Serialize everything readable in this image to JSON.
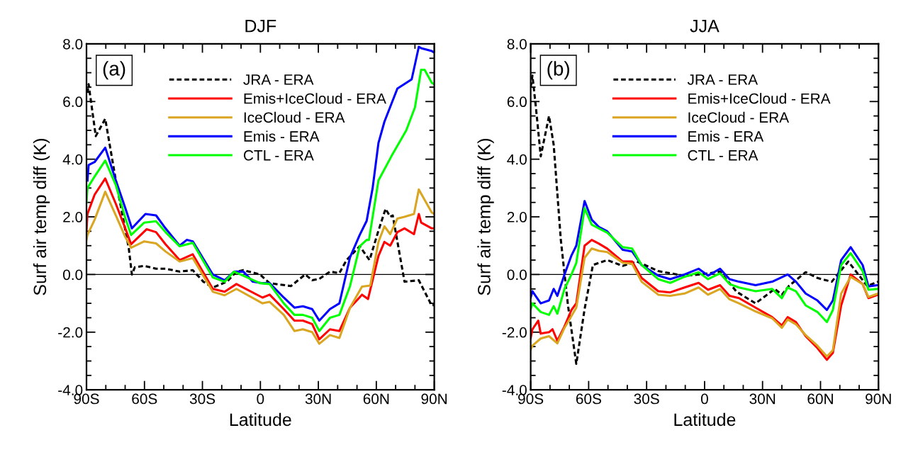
{
  "chart_data": [
    {
      "type": "line",
      "title": "DJF",
      "xlabel": "Latitude",
      "ylabel": "Surf air temp diff (K)",
      "annotations": [
        "(a)"
      ],
      "legend": "top",
      "grid": false,
      "xlim": [
        -90,
        90
      ],
      "xticks": [
        {
          "value": -90,
          "label": "90S"
        },
        {
          "value": -60,
          "label": "60S"
        },
        {
          "value": -30,
          "label": "30S"
        },
        0,
        {
          "value": 30,
          "label": "30N"
        },
        {
          "value": 60,
          "label": "60N"
        },
        {
          "value": 90,
          "label": "90N"
        }
      ],
      "ylim": [
        -4,
        8
      ],
      "yticks": [
        {
          "value": -4,
          "label": "-4.0"
        },
        {
          "value": -2,
          "label": "-2.0"
        },
        {
          "value": 0,
          "label": "0.0"
        },
        {
          "value": 2,
          "label": "2.0"
        },
        {
          "value": 4,
          "label": "4.0"
        },
        {
          "value": 6,
          "label": "6.0"
        },
        {
          "value": 8,
          "label": "8.0"
        }
      ],
      "ref_lines": [
        {
          "axis": "y",
          "value": 0,
          "color": "#000000"
        }
      ],
      "series": [
        {
          "name": "JRA - ERA",
          "color": "#000000",
          "line_style": "dashed",
          "x": [
            -89.5,
            -88.9,
            -85.2,
            -80.3,
            -74.8,
            -71.2,
            -68.1,
            -66.5,
            -65,
            -60,
            -54,
            -49,
            -41.8,
            -35,
            -29.5,
            -24.6,
            -17.3,
            -12.4,
            -8.8,
            -0.2,
            4.8,
            15.8,
            23.2,
            26.8,
            30.5,
            36,
            40.9,
            44.6,
            51.4,
            56.5,
            61,
            64.8,
            67.2,
            68.5,
            74.6,
            82,
            88.7,
            90
          ],
          "values": [
            6.3,
            6.6,
            4.8,
            5.4,
            3.26,
            2.0,
            0.9,
            0.0,
            0.25,
            0.3,
            0.2,
            0.2,
            0.1,
            0.15,
            -0.25,
            -0.45,
            -0.25,
            0.1,
            0.15,
            0.0,
            -0.3,
            -0.4,
            0.0,
            -0.2,
            -0.15,
            0.1,
            0.05,
            0.5,
            0.98,
            0.5,
            1.5,
            2.28,
            2.0,
            2.05,
            -0.25,
            -0.2,
            -1.08,
            -1.05
          ]
        },
        {
          "name": "Emis+IceCloud - ERA",
          "color": "#ff0000",
          "x": [
            -90,
            -89.5,
            -85.8,
            -80.3,
            -74.8,
            -69.9,
            -66.9,
            -58.9,
            -54,
            -49.1,
            -41.8,
            -35,
            -24.6,
            -18.5,
            -12.4,
            1.1,
            4.8,
            12.1,
            17.6,
            22,
            26.8,
            30.5,
            36,
            40.9,
            46.4,
            52.6,
            55.7,
            61.1,
            64.2,
            67.2,
            70.9,
            74.6,
            79.5,
            82,
            83.2,
            88.7,
            90
          ],
          "values": [
            1.5,
            2.1,
            2.77,
            3.33,
            2.45,
            1.6,
            1.05,
            1.57,
            1.47,
            1.05,
            0.5,
            0.7,
            -0.5,
            -0.6,
            -0.33,
            -0.8,
            -0.7,
            -1.2,
            -1.6,
            -1.6,
            -1.72,
            -2.25,
            -1.9,
            -1.96,
            -1.15,
            -0.7,
            -0.85,
            0.64,
            1.13,
            1.0,
            1.47,
            1.6,
            1.4,
            2.1,
            1.8,
            1.6,
            1.6
          ]
        },
        {
          "name": "IceCloud - ERA",
          "color": "#daa520",
          "x": [
            -90,
            -89.5,
            -85.8,
            -80.3,
            -74.8,
            -69.9,
            -66.9,
            -60.1,
            -54,
            -49.1,
            -41.8,
            -35,
            -24.6,
            -18.5,
            -12.4,
            1.1,
            4.8,
            12.1,
            17.6,
            22,
            26.8,
            30.5,
            36,
            40.9,
            46.4,
            52.6,
            56.9,
            61.1,
            64.2,
            67.2,
            70.9,
            74.6,
            79.5,
            82,
            88.7,
            90
          ],
          "values": [
            1.2,
            1.37,
            1.9,
            2.87,
            2.05,
            1.3,
            0.93,
            1.15,
            1.08,
            0.8,
            0.45,
            0.57,
            -0.6,
            -0.72,
            -0.5,
            -1.0,
            -0.95,
            -1.4,
            -1.96,
            -1.9,
            -2.0,
            -2.4,
            -2.1,
            -2.2,
            -1.15,
            -0.42,
            -0.38,
            1.13,
            1.67,
            1.4,
            1.94,
            2.0,
            2.1,
            2.95,
            2.15,
            2.1
          ]
        },
        {
          "name": "Emis - ERA",
          "color": "#0000ff",
          "x": [
            -89.5,
            -88.9,
            -85.8,
            -80.3,
            -74.8,
            -69.9,
            -66.5,
            -59.5,
            -54,
            -49.1,
            -41.8,
            -38.1,
            -35,
            -24.6,
            -18.5,
            -13.6,
            -8.8,
            -3.9,
            1.1,
            4.8,
            12.1,
            17.6,
            22,
            26.8,
            30.5,
            36,
            40.9,
            46.4,
            51.4,
            55,
            58.1,
            61.1,
            64.2,
            70.9,
            78.3,
            82,
            83.2,
            88.7,
            90
          ],
          "values": [
            3.26,
            3.8,
            3.9,
            4.4,
            3.26,
            2.3,
            1.6,
            2.1,
            2.05,
            1.6,
            1.0,
            1.2,
            1.15,
            0.0,
            -0.2,
            0.1,
            0.1,
            -0.25,
            -0.3,
            -0.3,
            -0.8,
            -1.15,
            -1.1,
            -1.2,
            -1.6,
            -1.2,
            -1.0,
            0.6,
            1.37,
            1.86,
            3.0,
            4.56,
            5.3,
            6.45,
            6.77,
            7.9,
            7.85,
            7.75,
            7.7
          ]
        },
        {
          "name": "CTL - ERA",
          "color": "#00ff00",
          "x": [
            -90,
            -89.5,
            -85.8,
            -80.3,
            -74.8,
            -69.9,
            -66.9,
            -60.1,
            -54,
            -49.1,
            -41.8,
            -35,
            -24.6,
            -18.5,
            -13.6,
            -0.2,
            4.8,
            12.1,
            17.6,
            22,
            26.8,
            30.5,
            36,
            40.9,
            46.4,
            51.4,
            55,
            56.2,
            61.1,
            67.8,
            75.5,
            80,
            83.2,
            85,
            88.7,
            90
          ],
          "values": [
            2.5,
            3.0,
            3.4,
            3.95,
            3.1,
            1.96,
            1.37,
            1.8,
            1.85,
            1.47,
            0.98,
            1.1,
            -0.1,
            -0.25,
            0.1,
            -0.3,
            -0.33,
            -1.0,
            -1.4,
            -1.4,
            -1.5,
            -1.96,
            -1.5,
            -1.4,
            -0.4,
            0.98,
            1.2,
            1.2,
            3.26,
            4.1,
            5.0,
            5.8,
            7.1,
            7.1,
            6.65,
            6.6
          ]
        }
      ]
    },
    {
      "type": "line",
      "title": "JJA",
      "xlabel": "Latitude",
      "ylabel": "Surf air temp diff (K)",
      "annotations": [
        "(b)"
      ],
      "legend": "top",
      "grid": false,
      "xlim": [
        -90,
        90
      ],
      "xticks": [
        {
          "value": -90,
          "label": "90S"
        },
        {
          "value": -60,
          "label": "60S"
        },
        {
          "value": -30,
          "label": "30S"
        },
        0,
        {
          "value": 30,
          "label": "30N"
        },
        {
          "value": 60,
          "label": "60N"
        },
        {
          "value": 90,
          "label": "90N"
        }
      ],
      "ylim": [
        -4,
        8
      ],
      "yticks": [
        {
          "value": -4,
          "label": "-4.0"
        },
        {
          "value": -2,
          "label": "-2.0"
        },
        {
          "value": 0,
          "label": "0.0"
        },
        {
          "value": 2,
          "label": "2.0"
        },
        {
          "value": 4,
          "label": "4.0"
        },
        {
          "value": 6,
          "label": "6.0"
        },
        {
          "value": 8,
          "label": "8.0"
        }
      ],
      "ref_lines": [
        {
          "axis": "y",
          "value": 0,
          "color": "#000000"
        }
      ],
      "series": [
        {
          "name": "JRA - ERA",
          "color": "#000000",
          "line_style": "dashed",
          "x": [
            -90,
            -89.1,
            -87.3,
            -84.8,
            -80.5,
            -78.1,
            -74.4,
            -70.7,
            -66.4,
            -62.1,
            -57.8,
            -50.4,
            -42.4,
            -35,
            -24,
            -10.4,
            -3.1,
            -1.8,
            8,
            16.6,
            26.4,
            36.3,
            40,
            43.6,
            52.3,
            58.4,
            65.8,
            74.4,
            84.2,
            89.8
          ],
          "values": [
            6.5,
            6.9,
            5.8,
            4.1,
            5.5,
            4.5,
            1.2,
            -1.07,
            -3.1,
            -1.2,
            0.33,
            0.5,
            0.3,
            0.45,
            0.12,
            -0.05,
            0.0,
            0.0,
            0.1,
            -0.6,
            -1.0,
            -0.5,
            -0.7,
            -0.4,
            0.08,
            -0.12,
            -0.25,
            0.45,
            -0.4,
            -0.25
          ]
        },
        {
          "name": "Emis+IceCloud - ERA",
          "color": "#ff0000",
          "x": [
            -90,
            -89.1,
            -86.1,
            -84.8,
            -80.5,
            -78.7,
            -76.2,
            -72.5,
            -68.9,
            -66.4,
            -62.1,
            -58.4,
            -54.7,
            -50.4,
            -42.4,
            -37.5,
            -32.6,
            -24,
            -17.8,
            -10.4,
            -3.1,
            1.8,
            8,
            12.9,
            17.8,
            26.4,
            35,
            40,
            43,
            47.3,
            52.3,
            58.4,
            63.3,
            66.4,
            70.7,
            75.6,
            81.8,
            84.8,
            89.8
          ],
          "values": [
            -2.2,
            -1.9,
            -1.6,
            -2.05,
            -2.0,
            -1.9,
            -2.3,
            -1.8,
            -1.23,
            -1.0,
            1.0,
            1.2,
            1.07,
            0.9,
            0.45,
            0.45,
            -0.12,
            -0.58,
            -0.62,
            -0.45,
            -0.29,
            -0.53,
            -0.37,
            -0.74,
            -0.82,
            -1.15,
            -1.48,
            -1.77,
            -1.48,
            -1.65,
            -2.14,
            -2.55,
            -2.96,
            -2.72,
            -1.07,
            0.0,
            -0.33,
            -0.82,
            -0.7
          ]
        },
        {
          "name": "IceCloud - ERA",
          "color": "#daa520",
          "x": [
            -90,
            -89.1,
            -84.8,
            -80.5,
            -76.2,
            -72.5,
            -66.4,
            -62.1,
            -58.4,
            -54.7,
            -50.4,
            -42.4,
            -37.5,
            -32.6,
            -24,
            -17.8,
            -10.4,
            -3.1,
            1.8,
            8,
            12.9,
            17.8,
            26.4,
            35,
            40,
            43,
            47.3,
            52.3,
            58.4,
            63.3,
            66.4,
            70.7,
            75.6,
            81.8,
            84.8,
            89.8
          ],
          "values": [
            -2.6,
            -2.47,
            -2.22,
            -2.14,
            -2.39,
            -1.85,
            -1.15,
            0.58,
            0.9,
            0.82,
            0.78,
            0.41,
            0.37,
            -0.25,
            -0.7,
            -0.74,
            -0.66,
            -0.45,
            -0.7,
            -0.5,
            -0.86,
            -1.0,
            -1.28,
            -1.52,
            -1.85,
            -1.56,
            -1.73,
            -2.1,
            -2.47,
            -2.84,
            -2.63,
            -0.66,
            -0.08,
            -0.33,
            -0.78,
            -0.66
          ]
        },
        {
          "name": "Emis - ERA",
          "color": "#0000ff",
          "x": [
            -90,
            -89.1,
            -84.8,
            -80.5,
            -78.1,
            -76.2,
            -72.5,
            -68.9,
            -66.4,
            -62.1,
            -58.4,
            -54.7,
            -50.4,
            -42.4,
            -37.5,
            -32.6,
            -24,
            -17.8,
            -10.4,
            -3.1,
            1.8,
            8,
            12.9,
            17.8,
            26.4,
            35,
            43,
            47.3,
            52.3,
            58.4,
            63.3,
            66.4,
            70.7,
            75.6,
            81.8,
            84.8,
            89.8
          ],
          "values": [
            -0.8,
            -0.58,
            -1.0,
            -0.9,
            -0.5,
            -0.74,
            0.0,
            0.66,
            1.0,
            2.55,
            1.9,
            1.65,
            1.5,
            0.86,
            0.8,
            0.33,
            -0.04,
            -0.16,
            0.0,
            0.2,
            -0.04,
            0.2,
            -0.16,
            -0.25,
            -0.37,
            -0.25,
            0.0,
            -0.25,
            -0.66,
            -0.9,
            -1.23,
            -0.9,
            0.5,
            0.95,
            0.33,
            -0.41,
            -0.37
          ]
        },
        {
          "name": "CTL - ERA",
          "color": "#00ff00",
          "x": [
            -90,
            -89.1,
            -84.8,
            -80.5,
            -78.1,
            -76.2,
            -72.5,
            -68.9,
            -66.4,
            -62.1,
            -58.4,
            -54.7,
            -50.4,
            -42.4,
            -37.5,
            -32.6,
            -24,
            -17.8,
            -10.4,
            -3.1,
            1.8,
            8,
            12.9,
            17.8,
            26.4,
            35,
            40,
            43,
            47.3,
            52.3,
            58.4,
            63.3,
            66.4,
            70.7,
            75.6,
            81.8,
            84.8,
            89.8
          ],
          "values": [
            -1.2,
            -1.0,
            -1.3,
            -1.4,
            -1.1,
            -1.36,
            -0.5,
            0.0,
            0.4,
            2.3,
            1.73,
            1.6,
            1.45,
            0.95,
            0.9,
            0.33,
            -0.16,
            -0.29,
            -0.08,
            0.08,
            -0.16,
            0.04,
            -0.33,
            -0.45,
            -0.58,
            -0.5,
            -0.82,
            -0.45,
            -0.58,
            -1.07,
            -1.3,
            -1.65,
            -1.23,
            0.33,
            0.74,
            0.12,
            -0.53,
            -0.5
          ]
        }
      ]
    }
  ]
}
